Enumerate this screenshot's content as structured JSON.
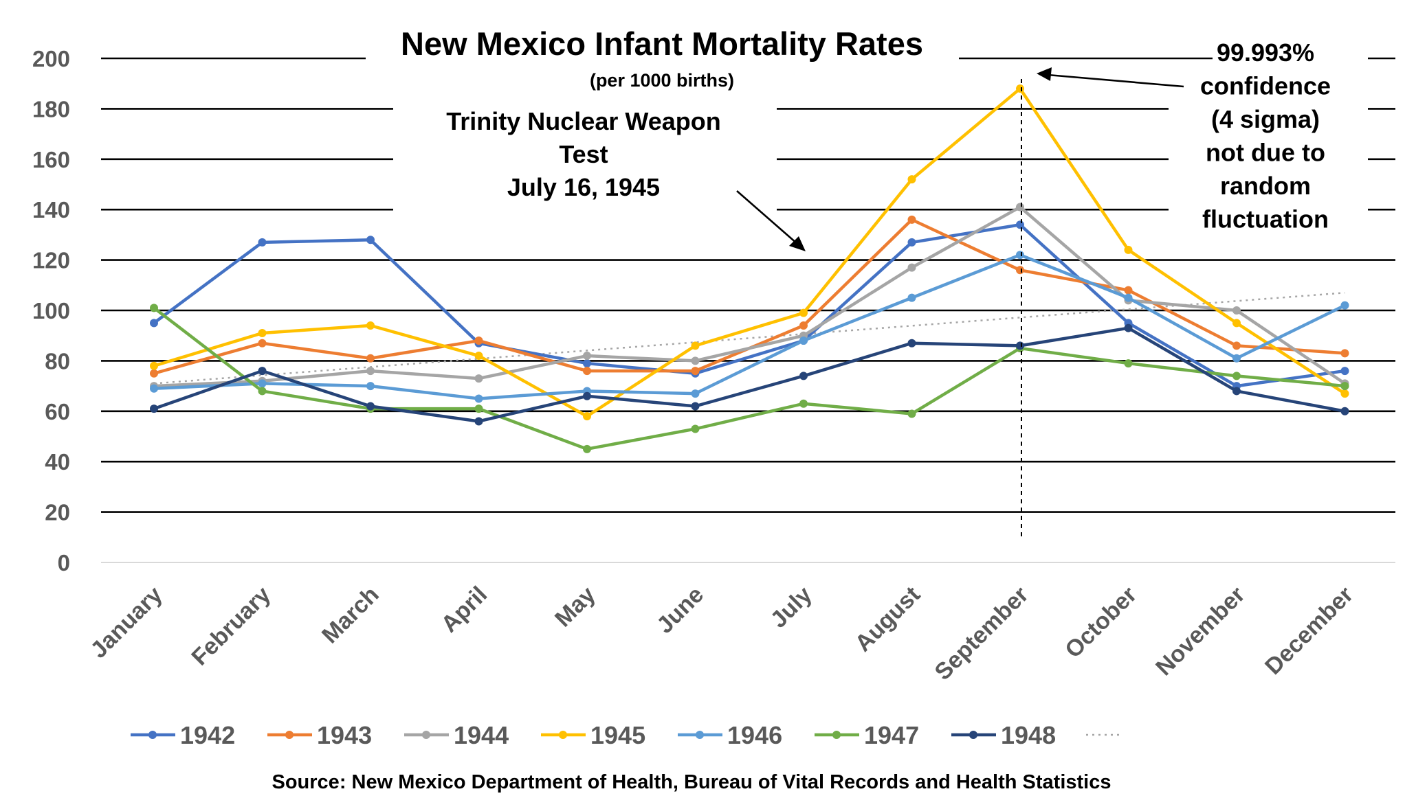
{
  "chart_data": {
    "type": "line",
    "title": "New Mexico Infant Mortality Rates",
    "subtitle": "(per 1000 births)",
    "xlabel": "",
    "ylabel": "",
    "ylim": [
      0,
      200
    ],
    "yticks": [
      0,
      20,
      40,
      60,
      80,
      100,
      120,
      140,
      160,
      180,
      200
    ],
    "grid": true,
    "legend_position": "bottom",
    "categories": [
      "January",
      "February",
      "March",
      "April",
      "May",
      "June",
      "July",
      "August",
      "September",
      "October",
      "November",
      "December"
    ],
    "series": [
      {
        "name": "1942",
        "color": "#4472c4",
        "values": [
          95,
          127,
          128,
          87,
          79,
          75,
          88,
          127,
          134,
          95,
          70,
          76
        ]
      },
      {
        "name": "1943",
        "color": "#ed7d31",
        "values": [
          75,
          87,
          81,
          88,
          76,
          76,
          94,
          136,
          116,
          108,
          86,
          83
        ]
      },
      {
        "name": "1944",
        "color": "#a5a5a5",
        "values": [
          70,
          72,
          76,
          73,
          82,
          80,
          90,
          117,
          141,
          104,
          100,
          71
        ]
      },
      {
        "name": "1945",
        "color": "#ffc000",
        "values": [
          78,
          91,
          94,
          82,
          58,
          86,
          99,
          152,
          188,
          124,
          95,
          67
        ]
      },
      {
        "name": "1946",
        "color": "#5b9bd5",
        "values": [
          69,
          71,
          70,
          65,
          68,
          67,
          88,
          105,
          122,
          105,
          81,
          102
        ]
      },
      {
        "name": "1947",
        "color": "#70ad47",
        "values": [
          101,
          68,
          61,
          61,
          45,
          53,
          63,
          59,
          85,
          79,
          74,
          70
        ]
      },
      {
        "name": "1948",
        "color": "#264478",
        "values": [
          61,
          76,
          62,
          56,
          66,
          62,
          74,
          87,
          86,
          93,
          68,
          60
        ]
      }
    ],
    "trendline": {
      "style": "dotted",
      "color": "#a6a6a6",
      "start": 71,
      "end": 107
    },
    "annotations": [
      {
        "text_lines": [
          "Trinity Nuclear Weapon",
          "Test",
          "July 16, 1945"
        ]
      },
      {
        "text_lines": [
          "99.993%",
          "confidence",
          "(4 sigma)",
          "not due to",
          "random",
          "fluctuation"
        ]
      }
    ],
    "marker_category": "September",
    "source": "Source: New Mexico Department of Health, Bureau of Vital Records and Health Statistics"
  }
}
